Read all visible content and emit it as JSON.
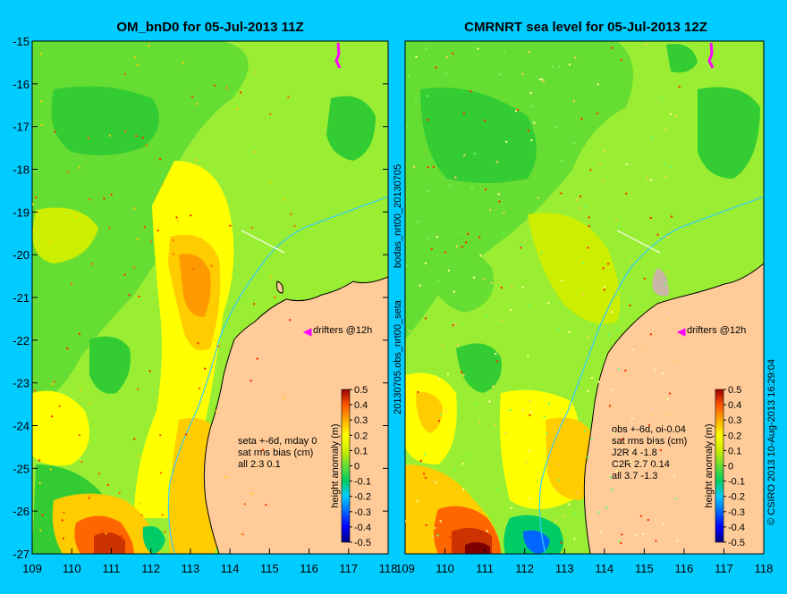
{
  "chart_data": [
    {
      "type": "heatmap",
      "title": "OM_bnD0 for 05-Jul-2013 11Z",
      "x_ticks": [
        "109",
        "110",
        "111",
        "112",
        "113",
        "114",
        "115",
        "116",
        "117",
        "118"
      ],
      "y_ticks": [
        "-15",
        "-16",
        "-17",
        "-18",
        "-19",
        "-20",
        "-21",
        "-22",
        "-23",
        "-24",
        "-25",
        "-26",
        "-27"
      ],
      "xlim": [
        109,
        118
      ],
      "ylim": [
        -27,
        -15
      ],
      "colorbar_label": "height anomaly (m)",
      "colorbar_ticks": [
        "0.5",
        "0.4",
        "0.3",
        "0.2",
        "0.1",
        "0",
        "-0.1",
        "-0.2",
        "-0.3",
        "-0.4",
        "-0.5"
      ],
      "colorbar_range": [
        -0.5,
        0.5
      ],
      "annotation_lines": [
        "seta +-6d, mday 0",
        "sat rms bias (cm)",
        "all 2.3 0.1"
      ],
      "drifters_label": "drifters @12h"
    },
    {
      "type": "heatmap",
      "title": "CMRNRT sea level  for 05-Jul-2013 12Z",
      "x_ticks": [
        "109",
        "110",
        "111",
        "112",
        "113",
        "114",
        "115",
        "116",
        "117",
        "118"
      ],
      "xlim": [
        109,
        118
      ],
      "ylim": [
        -27,
        -15
      ],
      "colorbar_label": "height anomaly (m)",
      "colorbar_ticks": [
        "0.5",
        "0.4",
        "0.3",
        "0.2",
        "0.1",
        "0",
        "-0.1",
        "-0.2",
        "-0.3",
        "-0.4",
        "-0.5"
      ],
      "colorbar_range": [
        -0.5,
        0.5
      ],
      "annotation_lines": [
        "obs +-6d, oi-0.04",
        "sat rms bias (cm)",
        "J2R   4 -1.8",
        "C2R   2.7 0.14",
        "all 3.7 -1.3"
      ],
      "drifters_label": "drifters @12h"
    }
  ],
  "side_labels": {
    "middle_top": "bodas_nrt00_20130705",
    "middle_bottom": "20130705.obs_nrt00_seta",
    "right": "© CSIRO 2013   10-Aug-2013 16:29:04"
  },
  "colors": {
    "background": "#00ccff",
    "land": "#ffcc99",
    "coastline": "#000000",
    "shelf_contour": "#33ccff",
    "drifters": "#ff00ff",
    "colormap": [
      "#000080",
      "#0000ff",
      "#0066ff",
      "#00ccff",
      "#00cc66",
      "#33cc33",
      "#99ee33",
      "#ffff00",
      "#ffcc00",
      "#ff9900",
      "#ff6600",
      "#cc3300",
      "#800000"
    ]
  }
}
